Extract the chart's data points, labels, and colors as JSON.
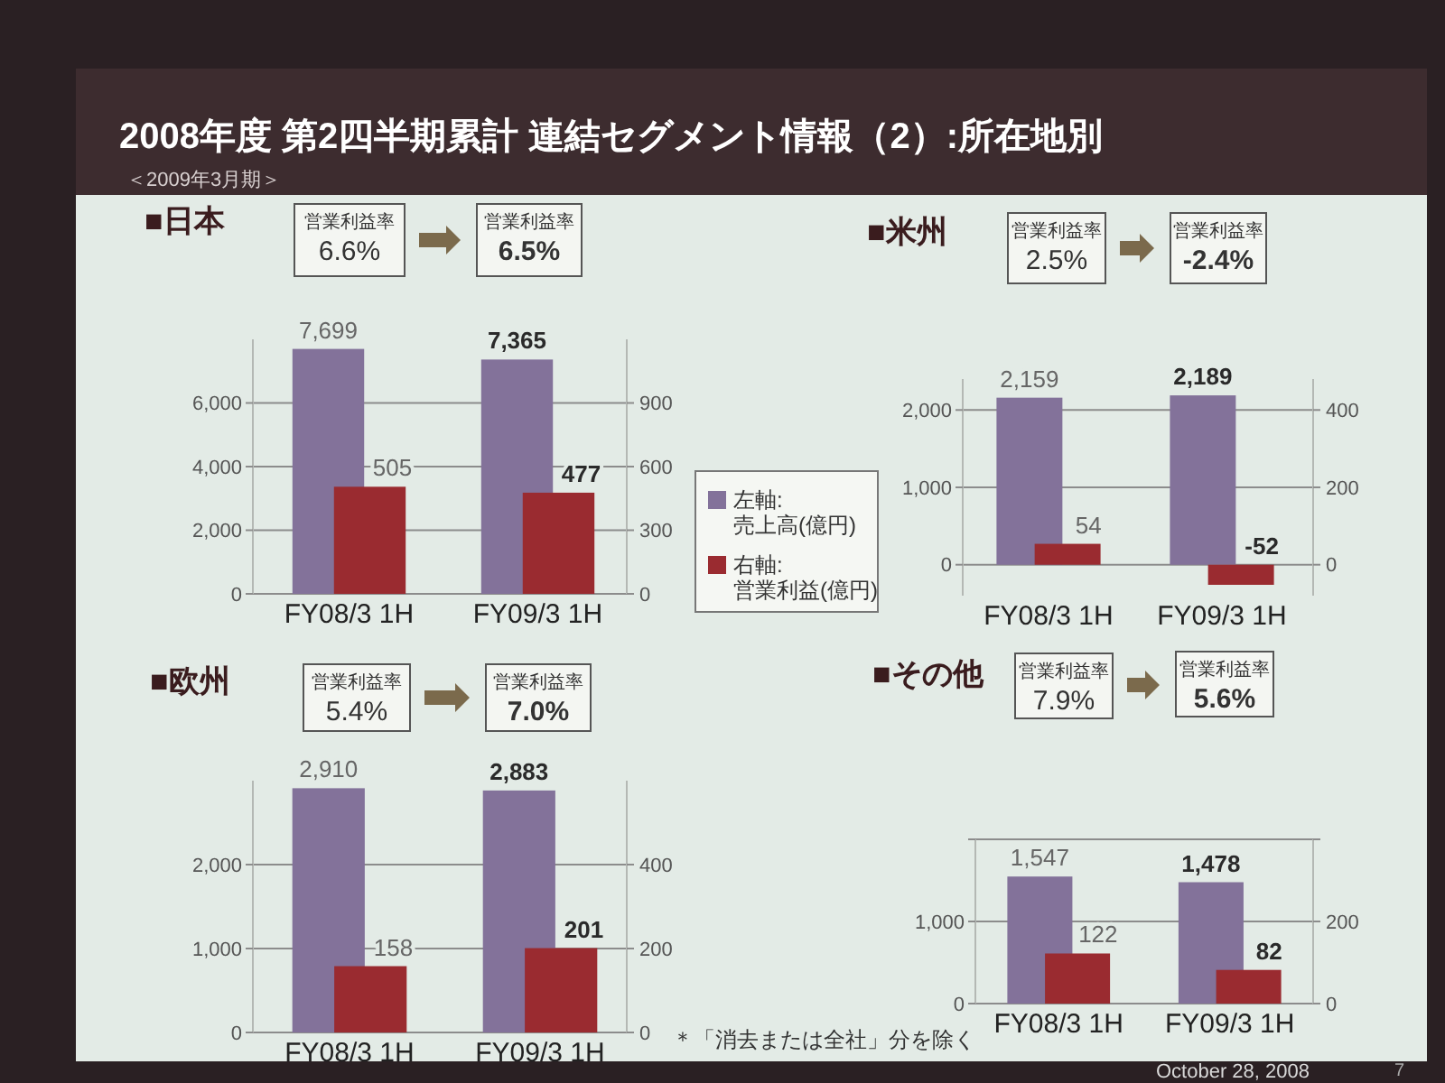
{
  "chart_data": [
    {
      "type": "bar",
      "title": "■日本",
      "categories": [
        "FY08/3 1H",
        "FY09/3 1H"
      ],
      "series": [
        {
          "name": "左軸:\n売上高(億円)",
          "color": "#83729a",
          "values": [
            7699,
            7365
          ],
          "value_labels": [
            "7,699",
            "7,365"
          ]
        },
        {
          "name": "右軸:\n営業利益(億円)",
          "color": "#9a2b30",
          "values": [
            505,
            477
          ],
          "value_labels": [
            "505",
            "477"
          ],
          "axis": "y2"
        }
      ],
      "ylim": [
        0,
        8000
      ],
      "yticks": [
        {
          "value": 0,
          "label": "0"
        },
        {
          "value": 2000,
          "label": "2,000"
        },
        {
          "value": 4000,
          "label": "4,000"
        },
        {
          "value": 6000,
          "label": "6,000"
        }
      ],
      "y2lim": [
        0,
        1200
      ],
      "y2ticks": [
        0,
        300,
        600,
        900
      ],
      "grid": "y",
      "legend": "right",
      "annotations": [
        "2008年度 第2四半期累計 連結セグメント情報（2）:所在地別",
        "＜2009年3月期＞",
        "営業利益率\n6.6%",
        "営業利益率\n6.5%"
      ]
    },
    {
      "type": "bar",
      "title": "■米州",
      "categories": [
        "FY08/3 1H",
        "FY09/3 1H"
      ],
      "series": [
        {
          "color": "#83729a",
          "values": [
            2159,
            2189
          ],
          "value_labels": [
            "2,159",
            "2,189"
          ]
        },
        {
          "color": "#9a2b30",
          "values": [
            54,
            -52
          ],
          "value_labels": [
            "54",
            "-52"
          ],
          "axis": "y2"
        }
      ],
      "ylim": [
        -400,
        2400
      ],
      "yticks": [
        {
          "value": 0,
          "label": "0"
        },
        {
          "value": 1000,
          "label": "1,000"
        },
        {
          "value": 2000,
          "label": "2,000"
        }
      ],
      "y2lim": [
        -80,
        480
      ],
      "y2ticks": [
        0,
        200,
        400
      ],
      "grid": "y",
      "annotations": [
        "営業利益率\n2.5%",
        "営業利益率\n-2.4%"
      ]
    },
    {
      "type": "bar",
      "title": "■欧州",
      "categories": [
        "FY08/3 1H",
        "FY09/3 1H"
      ],
      "series": [
        {
          "color": "#83729a",
          "values": [
            2910,
            2883
          ],
          "value_labels": [
            "2,910",
            "2,883"
          ]
        },
        {
          "color": "#9a2b30",
          "values": [
            158,
            201
          ],
          "value_labels": [
            "158",
            "201"
          ],
          "axis": "y2"
        }
      ],
      "ylim": [
        0,
        3000
      ],
      "yticks": [
        {
          "value": 0,
          "label": "0"
        },
        {
          "value": 1000,
          "label": "1,000"
        },
        {
          "value": 2000,
          "label": "2,000"
        }
      ],
      "y2lim": [
        0,
        600
      ],
      "y2ticks": [
        0,
        200,
        400
      ],
      "grid": "y",
      "annotations": [
        "営業利益率\n5.4%",
        "営業利益率\n7.0%",
        "＊「消去または全社」分を除く"
      ]
    },
    {
      "type": "bar",
      "title": "■その他",
      "categories": [
        "FY08/3 1H",
        "FY09/3 1H"
      ],
      "series": [
        {
          "color": "#83729a",
          "values": [
            1547,
            1478
          ],
          "value_labels": [
            "1,547",
            "1,478"
          ]
        },
        {
          "color": "#9a2b30",
          "values": [
            122,
            82
          ],
          "value_labels": [
            "122",
            "82"
          ],
          "axis": "y2"
        }
      ],
      "ylim": [
        0,
        2000
      ],
      "yticks": [
        {
          "value": 0,
          "label": "0"
        },
        {
          "value": 1000,
          "label": "1,000"
        },
        {
          "value": 2000,
          "label": null
        }
      ],
      "y2lim": [
        0,
        400
      ],
      "y2ticks": [
        0,
        200,
        {
          "value": 400,
          "label": null
        }
      ],
      "grid": "y",
      "annotations": [
        "営業利益率\n7.9%",
        "営業利益率\n5.6%",
        "October 28, 2008",
        "7"
      ]
    }
  ]
}
